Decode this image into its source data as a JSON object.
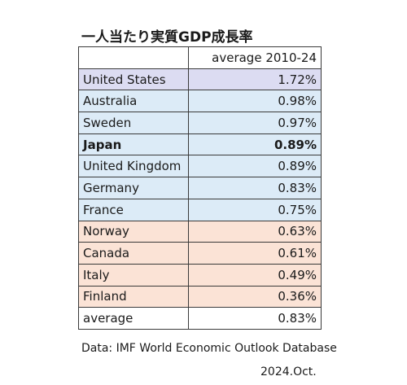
{
  "chart_data": {
    "type": "table",
    "title": "一人当たり実質GDP成長率",
    "column_headers": [
      "",
      "average 2010-24"
    ],
    "rows": [
      {
        "label": "United States",
        "value": "1.72%",
        "value_num": 1.72,
        "bold": false,
        "color": "#dcdcf2"
      },
      {
        "label": "Australia",
        "value": "0.98%",
        "value_num": 0.98,
        "bold": false,
        "color": "#dcebf7"
      },
      {
        "label": "Sweden",
        "value": "0.97%",
        "value_num": 0.97,
        "bold": false,
        "color": "#dcebf7"
      },
      {
        "label": "Japan",
        "value": "0.89%",
        "value_num": 0.89,
        "bold": true,
        "color": "#dcebf7"
      },
      {
        "label": "United Kingdom",
        "value": "0.89%",
        "value_num": 0.89,
        "bold": false,
        "color": "#dcebf7"
      },
      {
        "label": "Germany",
        "value": "0.83%",
        "value_num": 0.83,
        "bold": false,
        "color": "#dcebf7"
      },
      {
        "label": "France",
        "value": "0.75%",
        "value_num": 0.75,
        "bold": false,
        "color": "#dcebf7"
      },
      {
        "label": "Norway",
        "value": "0.63%",
        "value_num": 0.63,
        "bold": false,
        "color": "#fbe3d6"
      },
      {
        "label": "Canada",
        "value": "0.61%",
        "value_num": 0.61,
        "bold": false,
        "color": "#fbe3d6"
      },
      {
        "label": "Italy",
        "value": "0.49%",
        "value_num": 0.49,
        "bold": false,
        "color": "#fbe3d6"
      },
      {
        "label": "Finland",
        "value": "0.36%",
        "value_num": 0.36,
        "bold": false,
        "color": "#fbe3d6"
      },
      {
        "label": "average",
        "value": "0.83%",
        "value_num": 0.83,
        "bold": false,
        "color": "#ffffff"
      }
    ],
    "source": "Data: IMF World Economic Outlook Database",
    "date": "2024.Oct."
  }
}
